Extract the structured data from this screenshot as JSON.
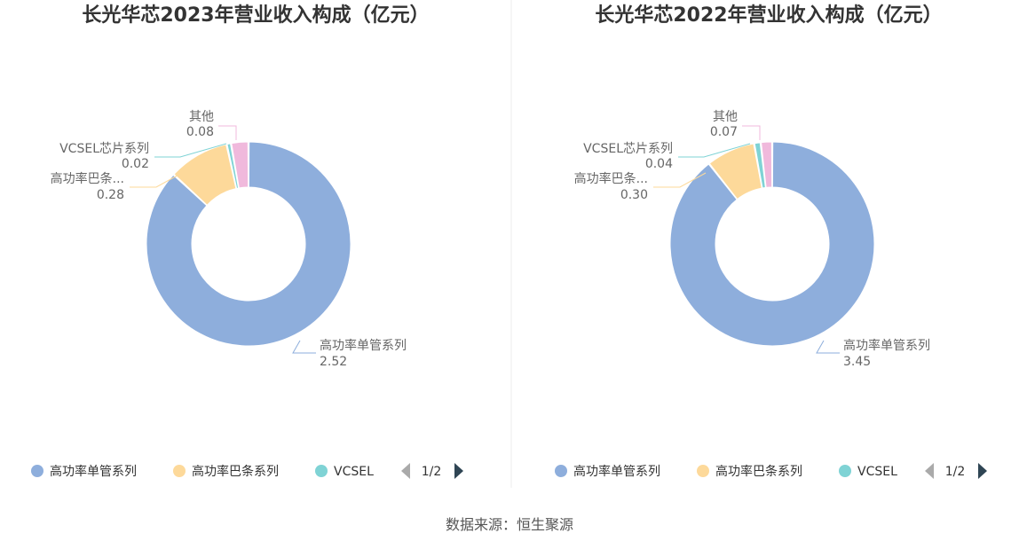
{
  "chart_data": [
    {
      "type": "pie",
      "style": "donut",
      "title": "长光华芯2023年营业收入构成（亿元）",
      "categories": [
        "高功率单管系列",
        "高功率巴条系列",
        "VCSEL芯片系列",
        "其他"
      ],
      "slice_labels": [
        "高功率单管系列",
        "高功率巴条...",
        "VCSEL芯片系列",
        "其他"
      ],
      "value_labels": [
        "2.52",
        "0.28",
        "0.02",
        "0.08"
      ],
      "values": [
        2.52,
        0.28,
        0.02,
        0.08
      ],
      "colors": [
        "#8eaedc",
        "#fdd99a",
        "#7fd3d5",
        "#f0b9dc"
      ],
      "legend": {
        "entries": [
          "高功率单管系列",
          "高功率巴条系列",
          "VCSEL"
        ],
        "page": "1/2",
        "position": "bottom"
      }
    },
    {
      "type": "pie",
      "style": "donut",
      "title": "长光华芯2022年营业收入构成（亿元）",
      "categories": [
        "高功率单管系列",
        "高功率巴条系列",
        "VCSEL芯片系列",
        "其他"
      ],
      "slice_labels": [
        "高功率单管系列",
        "高功率巴条...",
        "VCSEL芯片系列",
        "其他"
      ],
      "value_labels": [
        "3.45",
        "0.30",
        "0.04",
        "0.07"
      ],
      "values": [
        3.45,
        0.3,
        0.04,
        0.07
      ],
      "colors": [
        "#8eaedc",
        "#fdd99a",
        "#7fd3d5",
        "#f0b9dc"
      ],
      "legend": {
        "entries": [
          "高功率单管系列",
          "高功率巴条系列",
          "VCSEL"
        ],
        "page": "1/2",
        "position": "bottom"
      }
    }
  ],
  "source": "数据来源：恒生聚源"
}
